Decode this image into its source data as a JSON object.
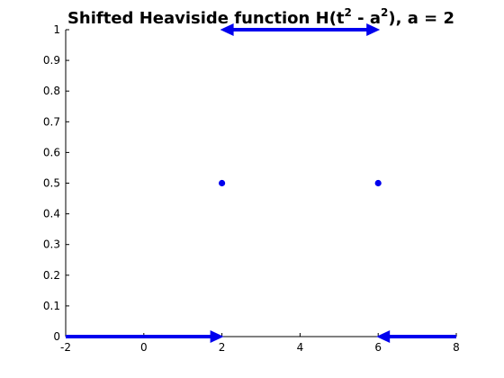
{
  "chart_data": {
    "type": "line",
    "title": {
      "prefix": "Shifted Heaviside function H(t",
      "sup1": "2",
      "middle": " - a",
      "sup2": "2",
      "suffix": "), a = 2"
    },
    "xlabel": "",
    "ylabel": "",
    "xlim": [
      -2,
      8
    ],
    "ylim": [
      0,
      1
    ],
    "x_ticks": [
      -2,
      0,
      2,
      4,
      6,
      8
    ],
    "x_tick_labels": [
      "-2",
      "0",
      "2",
      "4",
      "6",
      "8"
    ],
    "y_ticks": [
      0,
      0.1,
      0.2,
      0.3,
      0.4,
      0.5,
      0.6,
      0.7,
      0.8,
      0.9,
      1
    ],
    "y_tick_labels": [
      "0",
      "0.1",
      "0.2",
      "0.3",
      "0.4",
      "0.5",
      "0.6",
      "0.7",
      "0.8",
      "0.9",
      "1"
    ],
    "grid": false,
    "color": "#0000ee",
    "arrow_segments": [
      {
        "name": "left-zero",
        "x_from": -2,
        "x_to": 2,
        "y": 0,
        "arrow_at_start": false,
        "arrow_at_end": true
      },
      {
        "name": "middle-one",
        "x_from": 2,
        "x_to": 6,
        "y": 1,
        "arrow_at_start": true,
        "arrow_at_end": true
      },
      {
        "name": "right-zero",
        "x_from": 6,
        "x_to": 8,
        "y": 0,
        "arrow_at_start": true,
        "arrow_at_end": false
      }
    ],
    "points": [
      {
        "x": 2,
        "y": 0.5
      },
      {
        "x": 6,
        "y": 0.5
      }
    ]
  }
}
